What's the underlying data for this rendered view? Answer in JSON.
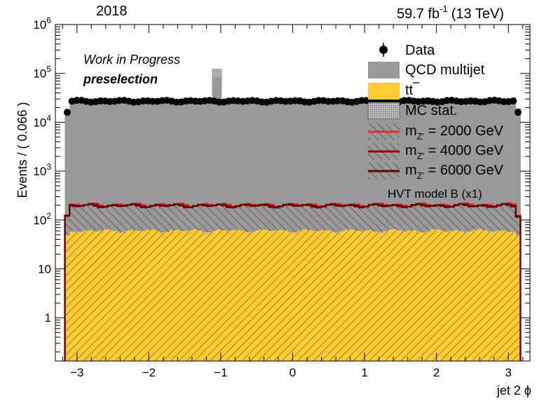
{
  "header": {
    "year": "2018",
    "lumi_value": "59.7 fb",
    "lumi_exp": "-1",
    "energy": "(13 TeV)"
  },
  "labels": {
    "status": "Work in Progress",
    "region": "preselection",
    "model": "HVT model B (x1)"
  },
  "legend": {
    "data": "Data",
    "qcd": "QCD multijet",
    "ttbar": "tt",
    "mcstat": "MC stat.",
    "sig_prefix": "m",
    "sig_sub": "Z'",
    "sig1_mass": " = 2000 GeV",
    "sig2_mass": " = 4000 GeV",
    "sig3_mass": " = 6000 GeV"
  },
  "colors": {
    "qcd": "#999999",
    "ttbar": "#ffcc33",
    "sig1": "#e03030",
    "sig2": "#a00000",
    "sig3": "#600000",
    "data": "#000000"
  },
  "chart_data": {
    "type": "bar",
    "subtype": "stacked histogram with data points (log y)",
    "xlabel": "jet 2 ϕ",
    "ylabel": "Events / ( 0.066 )",
    "log_y": true,
    "xlim": [
      -3.3,
      3.3
    ],
    "ylim": [
      0.13,
      1000000
    ],
    "x_ticks": [
      -3,
      -2,
      -1,
      0,
      1,
      2,
      3
    ],
    "x_tick_labels": [
      "−3",
      "−2",
      "−1",
      "0",
      "1",
      "2",
      "3"
    ],
    "y_ticks": [
      {
        "v": 1,
        "base": "1",
        "exp": ""
      },
      {
        "v": 10,
        "base": "10",
        "exp": ""
      },
      {
        "v": 100,
        "base": "10",
        "exp": "2"
      },
      {
        "v": 1000,
        "base": "10",
        "exp": "3"
      },
      {
        "v": 10000,
        "base": "10",
        "exp": "4"
      },
      {
        "v": 100000,
        "base": "10",
        "exp": "5"
      },
      {
        "v": 1000000,
        "base": "10",
        "exp": "6"
      }
    ],
    "bin_range": [
      -3.168,
      3.168
    ],
    "n_bins": 96,
    "series": [
      {
        "name": "Data",
        "kind": "points",
        "typical": 27000,
        "edge": 16000,
        "spike": {
          "x": -1.05,
          "value": 30000
        }
      },
      {
        "name": "QCD multijet",
        "kind": "stack",
        "typical": 30000,
        "edge": 18000,
        "spike": {
          "x": -1.05,
          "value": 120000
        }
      },
      {
        "name": "tt",
        "kind": "stack",
        "typical": 60,
        "edge": 45
      },
      {
        "name": "mZ' = 2000 GeV",
        "kind": "line",
        "typical": 205,
        "edge": 130
      },
      {
        "name": "mZ' = 4000 GeV",
        "kind": "line",
        "typical": 200,
        "edge": 125
      },
      {
        "name": "mZ' = 6000 GeV",
        "kind": "line",
        "typical": 195,
        "edge": 120
      }
    ]
  }
}
